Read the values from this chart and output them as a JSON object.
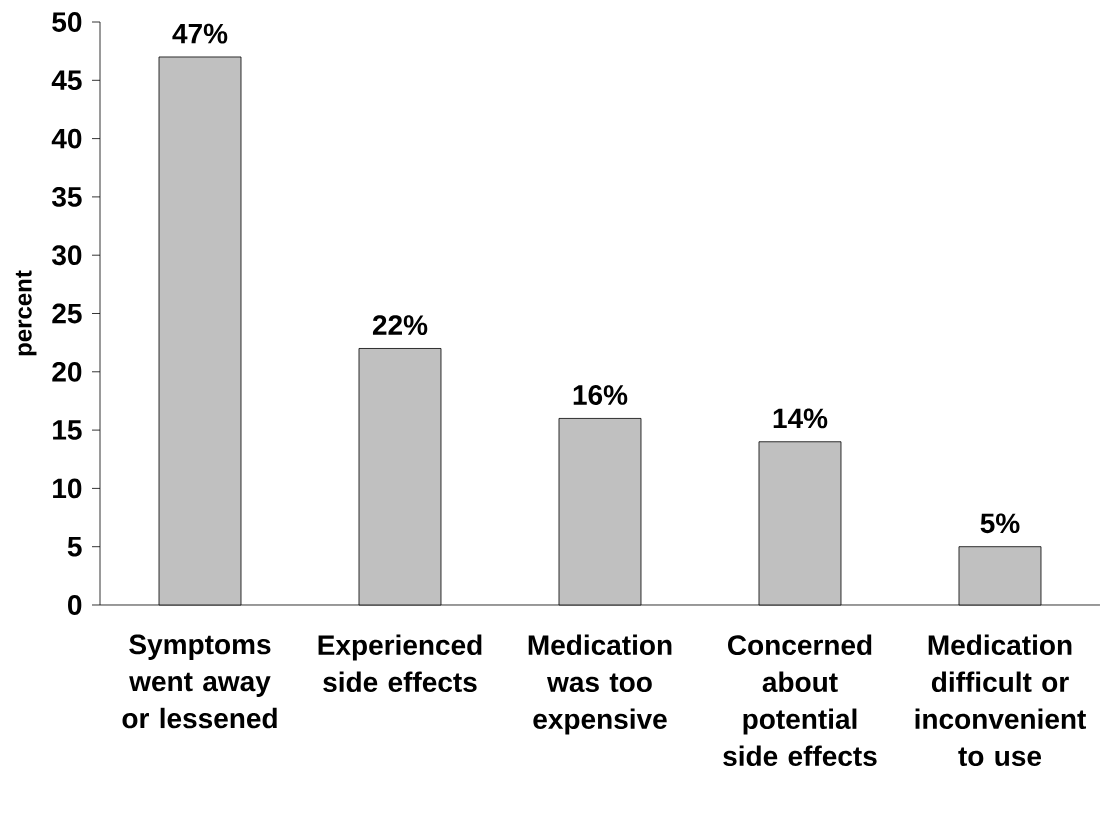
{
  "chart_data": {
    "type": "bar",
    "ylabel": "percent",
    "categories": [
      "Symptoms went away or lessened",
      "Experienced side effects",
      "Medication was too expensive",
      "Concerned about potential side effects",
      "Medication difficult or inconvenient to use"
    ],
    "values": [
      47,
      22,
      16,
      14,
      5
    ],
    "value_labels": [
      "47%",
      "22%",
      "16%",
      "14%",
      "5%"
    ],
    "color": "#c0c0c0",
    "ylim": [
      0,
      50
    ],
    "yticks": [
      0,
      5,
      10,
      15,
      20,
      25,
      30,
      35,
      40,
      45,
      50
    ],
    "grid": false
  }
}
